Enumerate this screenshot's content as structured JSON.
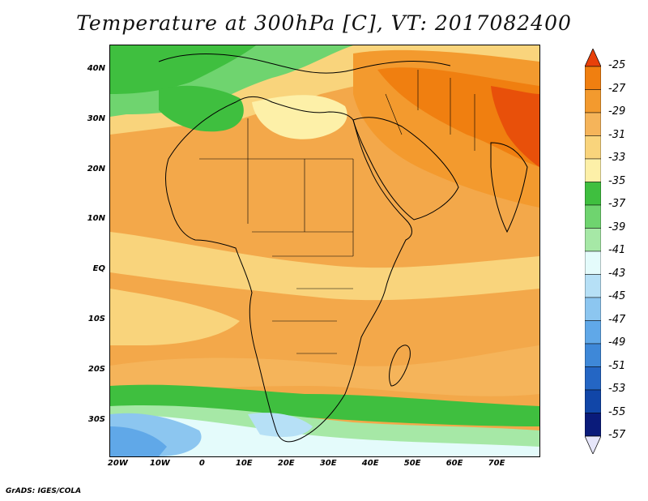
{
  "title": "Temperature at 300hPa [C], VT: 2017082400",
  "footer": "GrADS: IGES/COLA",
  "lat_labels": [
    {
      "text": "40N",
      "lat": 40
    },
    {
      "text": "30N",
      "lat": 30
    },
    {
      "text": "20N",
      "lat": 20
    },
    {
      "text": "10N",
      "lat": 10
    },
    {
      "text": "EQ",
      "lat": 0
    },
    {
      "text": "10S",
      "lat": -10
    },
    {
      "text": "20S",
      "lat": -20
    },
    {
      "text": "30S",
      "lat": -30
    }
  ],
  "lon_labels": [
    {
      "text": "20W",
      "lon": -20
    },
    {
      "text": "10W",
      "lon": -10
    },
    {
      "text": "0",
      "lon": 0
    },
    {
      "text": "10E",
      "lon": 10
    },
    {
      "text": "20E",
      "lon": 20
    },
    {
      "text": "30E",
      "lon": 30
    },
    {
      "text": "40E",
      "lon": 40
    },
    {
      "text": "50E",
      "lon": 50
    },
    {
      "text": "60E",
      "lon": 60
    },
    {
      "text": "70E",
      "lon": 70
    }
  ],
  "map_extent": {
    "lon_min": -22,
    "lon_max": 80,
    "lat_min": -37,
    "lat_max": 45
  },
  "colorbar": {
    "labels": [
      "-25",
      "-27",
      "-29",
      "-31",
      "-33",
      "-35",
      "-37",
      "-39",
      "-41",
      "-43",
      "-45",
      "-47",
      "-49",
      "-51",
      "-53",
      "-55",
      "-57"
    ],
    "colors": [
      "#e8500a",
      "#f07f10",
      "#f39a2e",
      "#f5b45a",
      "#f9d47c",
      "#fdf0a8",
      "#3fbf3f",
      "#6fd46f",
      "#a6e8a6",
      "#e4fbfb",
      "#b6e0f6",
      "#8cc6f0",
      "#60a8e8",
      "#3e88d8",
      "#2466c4",
      "#1146a8",
      "#0a1b7a"
    ],
    "arrow_top_color": "#e8400a",
    "arrow_bottom_color": "#e6e6fa"
  }
}
